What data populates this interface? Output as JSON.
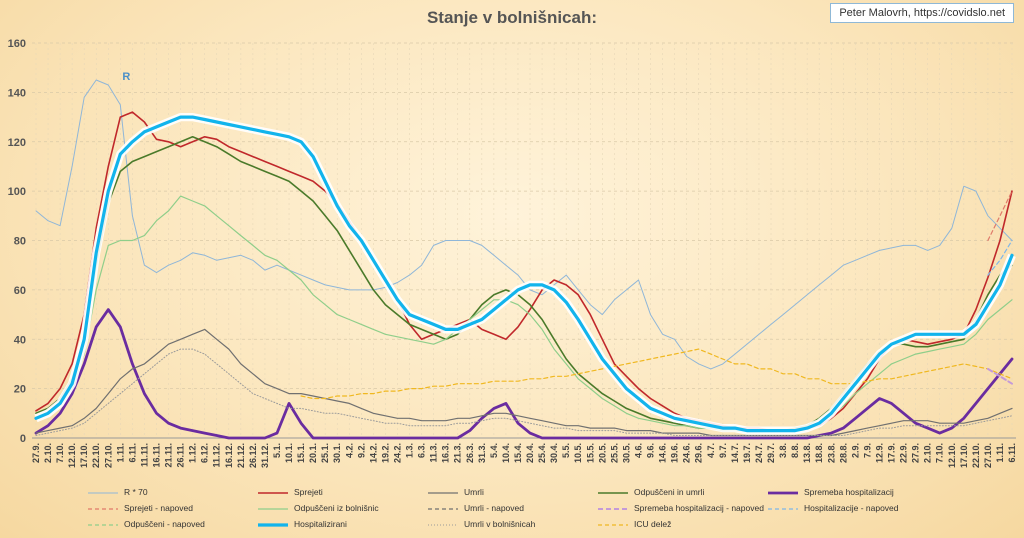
{
  "title": "Stanje v bolnišnicah:",
  "credit": "Peter Malovrh, https://covidslo.net",
  "chart_data": {
    "type": "line",
    "ylim": [
      0,
      160
    ],
    "yticks": [
      0,
      20,
      40,
      60,
      80,
      100,
      120,
      140,
      160
    ],
    "xticks": [
      "27.9.",
      "2.10.",
      "7.10.",
      "12.10.",
      "17.10.",
      "22.10.",
      "27.10.",
      "1.11.",
      "6.11.",
      "11.11.",
      "16.11.",
      "21.11.",
      "26.11.",
      "1.12.",
      "6.12.",
      "11.12.",
      "16.12.",
      "21.12.",
      "26.12.",
      "31.12.",
      "5.1.",
      "10.1.",
      "15.1.",
      "20.1.",
      "25.1.",
      "30.1.",
      "4.2.",
      "9.2.",
      "14.2.",
      "19.2.",
      "24.2.",
      "1.3.",
      "6.3.",
      "11.3.",
      "16.3.",
      "21.3.",
      "26.3.",
      "31.3.",
      "5.4.",
      "10.4.",
      "15.4.",
      "20.4.",
      "25.4.",
      "30.4.",
      "5.5.",
      "10.5.",
      "15.5.",
      "20.5.",
      "25.5.",
      "30.5.",
      "4.6.",
      "9.6.",
      "14.6.",
      "19.6.",
      "24.6.",
      "29.6.",
      "4.7.",
      "9.7.",
      "14.7.",
      "19.7.",
      "24.7.",
      "29.7.",
      "3.8.",
      "8.8.",
      "13.8.",
      "18.8.",
      "23.8.",
      "28.8.",
      "2.9.",
      "7.9.",
      "12.9.",
      "17.9.",
      "22.9.",
      "27.9.",
      "2.10.",
      "7.10.",
      "12.10.",
      "17.10.",
      "22.10.",
      "27.10.",
      "1.11.",
      "6.11."
    ],
    "annotation": "R",
    "series": [
      {
        "name": "R * 70",
        "color": "#8fb6d8",
        "width": 1,
        "dash": "",
        "values": [
          92,
          88,
          86,
          110,
          138,
          145,
          143,
          135,
          90,
          70,
          67,
          70,
          72,
          75,
          74,
          72,
          73,
          74,
          72,
          68,
          70,
          68,
          66,
          64,
          62,
          61,
          60,
          60,
          60,
          61,
          63,
          66,
          70,
          78,
          80,
          80,
          80,
          78,
          74,
          70,
          66,
          60,
          58,
          62,
          66,
          60,
          54,
          50,
          56,
          60,
          64,
          50,
          42,
          40,
          33,
          30,
          28,
          30,
          34,
          38,
          42,
          46,
          50,
          54,
          58,
          62,
          66,
          70,
          72,
          74,
          76,
          77,
          78,
          78,
          76,
          78,
          85,
          102,
          100,
          90,
          85,
          80
        ]
      },
      {
        "name": "Sprejeti",
        "color": "#c0282b",
        "width": 1.6,
        "dash": "",
        "values": [
          11,
          14,
          20,
          30,
          50,
          85,
          110,
          130,
          132,
          128,
          121,
          120,
          118,
          120,
          122,
          121,
          118,
          116,
          114,
          112,
          110,
          108,
          106,
          104,
          100,
          95,
          88,
          80,
          72,
          64,
          56,
          46,
          40,
          42,
          44,
          46,
          48,
          44,
          42,
          40,
          45,
          52,
          60,
          64,
          62,
          58,
          50,
          40,
          30,
          25,
          20,
          16,
          13,
          10,
          8,
          7,
          6,
          5,
          4,
          4,
          4,
          3,
          3,
          3,
          4,
          5,
          8,
          12,
          18,
          24,
          32,
          38,
          40,
          39,
          38,
          39,
          40,
          42,
          52,
          65,
          80,
          100
        ]
      },
      {
        "name": "Spremeba hospitalizacij",
        "color": "#6a2ca0",
        "width": 2.8,
        "dash": "",
        "values": [
          2,
          5,
          10,
          18,
          30,
          45,
          52,
          45,
          30,
          18,
          10,
          6,
          4,
          3,
          2,
          1,
          0,
          0,
          0,
          0,
          2,
          14,
          6,
          0,
          0,
          0,
          0,
          0,
          0,
          0,
          0,
          0,
          0,
          0,
          0,
          0,
          3,
          8,
          12,
          14,
          6,
          2,
          0,
          0,
          0,
          0,
          0,
          0,
          0,
          0,
          0,
          0,
          0,
          0,
          0,
          0,
          0,
          0,
          0,
          0,
          0,
          0,
          0,
          0,
          0,
          1,
          2,
          4,
          8,
          12,
          16,
          14,
          10,
          6,
          4,
          2,
          4,
          8,
          14,
          20,
          26,
          32
        ]
      },
      {
        "name": "Odpuščeni in umrli",
        "color": "#4a7a2a",
        "width": 1.6,
        "dash": "",
        "values": [
          10,
          12,
          16,
          24,
          40,
          70,
          95,
          108,
          112,
          114,
          116,
          118,
          120,
          122,
          120,
          118,
          115,
          112,
          110,
          108,
          106,
          104,
          100,
          96,
          90,
          84,
          76,
          68,
          60,
          54,
          50,
          46,
          44,
          42,
          40,
          42,
          48,
          54,
          58,
          60,
          58,
          54,
          48,
          40,
          32,
          26,
          22,
          18,
          15,
          12,
          10,
          8,
          7,
          6,
          5,
          4,
          4,
          3,
          3,
          3,
          3,
          3,
          3,
          4,
          5,
          8,
          12,
          18,
          24,
          30,
          35,
          38,
          38,
          37,
          37,
          38,
          39,
          40,
          48,
          58,
          66,
          70
        ]
      },
      {
        "name": "Odpuščeni iz bolnišnic",
        "color": "#8fce8a",
        "width": 1.2,
        "dash": "",
        "values": [
          8,
          10,
          14,
          20,
          34,
          60,
          78,
          80,
          80,
          82,
          88,
          92,
          98,
          96,
          94,
          90,
          86,
          82,
          78,
          74,
          72,
          68,
          64,
          58,
          54,
          50,
          48,
          46,
          44,
          42,
          41,
          40,
          39,
          38,
          40,
          44,
          48,
          52,
          56,
          56,
          54,
          50,
          44,
          36,
          30,
          24,
          20,
          16,
          13,
          10,
          8,
          7,
          6,
          5,
          5,
          4,
          4,
          3,
          3,
          3,
          3,
          3,
          3,
          3,
          4,
          6,
          9,
          13,
          18,
          22,
          26,
          30,
          32,
          34,
          35,
          36,
          37,
          38,
          42,
          48,
          52,
          56
        ]
      },
      {
        "name": "Umrli",
        "color": "#707070",
        "width": 1.2,
        "dash": "",
        "values": [
          2,
          3,
          4,
          5,
          8,
          12,
          18,
          24,
          28,
          30,
          34,
          38,
          40,
          42,
          44,
          40,
          36,
          30,
          26,
          22,
          20,
          18,
          18,
          17,
          16,
          15,
          14,
          12,
          10,
          9,
          8,
          8,
          7,
          7,
          7,
          8,
          8,
          9,
          10,
          10,
          9,
          8,
          7,
          6,
          5,
          5,
          4,
          4,
          4,
          3,
          3,
          3,
          2,
          2,
          2,
          2,
          1,
          1,
          1,
          1,
          1,
          1,
          1,
          1,
          1,
          1,
          1,
          2,
          3,
          4,
          5,
          6,
          7,
          7,
          7,
          6,
          6,
          6,
          7,
          8,
          10,
          12
        ]
      },
      {
        "name": "Umrli v bolnišnicah",
        "color": "#9a9a9a",
        "width": 1,
        "dash": "1,2",
        "values": [
          1,
          2,
          3,
          4,
          6,
          10,
          14,
          18,
          22,
          26,
          30,
          34,
          36,
          36,
          34,
          30,
          26,
          22,
          18,
          16,
          14,
          12,
          12,
          11,
          10,
          10,
          9,
          8,
          7,
          6,
          6,
          5,
          5,
          5,
          5,
          6,
          6,
          7,
          8,
          8,
          7,
          6,
          5,
          4,
          4,
          3,
          3,
          3,
          3,
          2,
          2,
          2,
          2,
          1,
          1,
          1,
          1,
          1,
          1,
          1,
          1,
          1,
          1,
          1,
          1,
          1,
          1,
          1,
          2,
          3,
          4,
          4,
          5,
          5,
          5,
          5,
          5,
          5,
          6,
          7,
          8,
          9
        ]
      },
      {
        "name": "ICU delež",
        "color": "#f0b820",
        "width": 1.2,
        "dash": "4,3",
        "values": [
          null,
          null,
          null,
          null,
          null,
          null,
          null,
          null,
          null,
          null,
          null,
          null,
          null,
          null,
          null,
          null,
          null,
          null,
          null,
          null,
          null,
          null,
          17,
          16,
          16,
          17,
          17,
          18,
          18,
          19,
          19,
          20,
          20,
          21,
          21,
          22,
          22,
          22,
          23,
          23,
          23,
          24,
          24,
          25,
          25,
          26,
          27,
          28,
          29,
          30,
          31,
          32,
          33,
          34,
          35,
          36,
          34,
          32,
          30,
          30,
          28,
          28,
          26,
          26,
          24,
          24,
          22,
          22,
          22,
          23,
          24,
          24,
          25,
          26,
          27,
          28,
          29,
          30,
          29,
          28,
          26,
          24
        ]
      },
      {
        "name": "Hospitalizirani",
        "color": "#12b4ec",
        "width": 3.2,
        "dash": "",
        "values": [
          8,
          10,
          14,
          22,
          40,
          75,
          100,
          115,
          120,
          124,
          126,
          128,
          130,
          130,
          129,
          128,
          127,
          126,
          125,
          124,
          123,
          122,
          120,
          114,
          104,
          94,
          86,
          80,
          72,
          64,
          56,
          50,
          48,
          46,
          44,
          44,
          46,
          48,
          52,
          56,
          60,
          62,
          62,
          60,
          55,
          48,
          40,
          32,
          26,
          20,
          16,
          12,
          10,
          8,
          7,
          6,
          5,
          4,
          4,
          3,
          3,
          3,
          3,
          3,
          4,
          6,
          10,
          16,
          22,
          28,
          34,
          38,
          40,
          42,
          42,
          42,
          42,
          42,
          46,
          54,
          62,
          74
        ]
      },
      {
        "name": "Sprejeti - napoved",
        "color": "#e07a6a",
        "width": 1.2,
        "dash": "4,3",
        "values": [
          null,
          null,
          null,
          null,
          null,
          null,
          null,
          null,
          null,
          null,
          null,
          null,
          null,
          null,
          null,
          null,
          null,
          null,
          null,
          null,
          null,
          null,
          null,
          null,
          null,
          null,
          null,
          null,
          null,
          null,
          null,
          null,
          null,
          null,
          null,
          null,
          null,
          null,
          null,
          null,
          null,
          null,
          null,
          null,
          null,
          null,
          null,
          null,
          null,
          null,
          null,
          null,
          null,
          null,
          null,
          null,
          null,
          null,
          null,
          null,
          null,
          null,
          null,
          null,
          null,
          null,
          null,
          null,
          null,
          null,
          null,
          null,
          null,
          null,
          null,
          null,
          null,
          null,
          null,
          80,
          90,
          100
        ]
      },
      {
        "name": "Hospitalizacije - napoved",
        "color": "#7fb6e8",
        "width": 1.2,
        "dash": "4,3",
        "values": [
          null,
          null,
          null,
          null,
          null,
          null,
          null,
          null,
          null,
          null,
          null,
          null,
          null,
          null,
          null,
          null,
          null,
          null,
          null,
          null,
          null,
          null,
          null,
          null,
          null,
          null,
          null,
          null,
          null,
          null,
          null,
          null,
          null,
          null,
          null,
          null,
          null,
          null,
          null,
          null,
          null,
          null,
          null,
          null,
          null,
          null,
          null,
          null,
          null,
          null,
          null,
          null,
          null,
          null,
          null,
          null,
          null,
          null,
          null,
          null,
          null,
          null,
          null,
          null,
          null,
          null,
          null,
          null,
          null,
          null,
          null,
          null,
          null,
          null,
          null,
          null,
          null,
          null,
          null,
          66,
          72,
          80
        ]
      },
      {
        "name": "Spremeba hospitalizacij - napoved",
        "color": "#c49ad8",
        "width": 2,
        "dash": "5,3",
        "values": [
          null,
          null,
          null,
          null,
          null,
          null,
          null,
          null,
          null,
          null,
          null,
          null,
          null,
          null,
          null,
          null,
          null,
          null,
          null,
          null,
          null,
          null,
          null,
          null,
          null,
          null,
          null,
          null,
          null,
          null,
          null,
          null,
          null,
          null,
          null,
          null,
          null,
          null,
          null,
          null,
          null,
          null,
          null,
          null,
          null,
          null,
          null,
          null,
          null,
          null,
          null,
          null,
          null,
          null,
          null,
          null,
          null,
          null,
          null,
          null,
          null,
          null,
          null,
          null,
          null,
          null,
          null,
          null,
          null,
          null,
          null,
          null,
          null,
          null,
          null,
          null,
          null,
          null,
          null,
          28,
          25,
          22
        ]
      }
    ]
  },
  "legend": [
    {
      "label": "R * 70",
      "color": "#8fb6d8",
      "width": 1,
      "dash": ""
    },
    {
      "label": "Sprejeti",
      "color": "#c0282b",
      "width": 1.6,
      "dash": ""
    },
    {
      "label": "Umrli",
      "color": "#707070",
      "width": 1.2,
      "dash": ""
    },
    {
      "label": "Odpuščeni in umrli",
      "color": "#4a7a2a",
      "width": 1.6,
      "dash": ""
    },
    {
      "label": "Spremeba hospitalizacij",
      "color": "#6a2ca0",
      "width": 2.8,
      "dash": ""
    },
    {
      "label": "Sprejeti - napoved",
      "color": "#e07a6a",
      "width": 1.2,
      "dash": "4,3"
    },
    {
      "label": "Odpuščeni iz bolnišnic",
      "color": "#8fce8a",
      "width": 1.2,
      "dash": ""
    },
    {
      "label": "Umrli - napoved",
      "color": "#707070",
      "width": 1.2,
      "dash": "4,3"
    },
    {
      "label": "Spremeba hospitalizacij - napoved",
      "color": "#c49ad8",
      "width": 2,
      "dash": "5,3"
    },
    {
      "label": "Hospitalizacije - napoved",
      "color": "#7fb6e8",
      "width": 1.2,
      "dash": "4,3"
    },
    {
      "label": "Odpuščeni - napoved",
      "color": "#8fce8a",
      "width": 1.2,
      "dash": "4,3"
    },
    {
      "label": "Hospitalizirani",
      "color": "#12b4ec",
      "width": 3.2,
      "dash": ""
    },
    {
      "label": "Umrli v bolnišnicah",
      "color": "#9a9a9a",
      "width": 1,
      "dash": "1,2"
    },
    {
      "label": "ICU delež",
      "color": "#f0b820",
      "width": 1.2,
      "dash": "4,3"
    }
  ]
}
